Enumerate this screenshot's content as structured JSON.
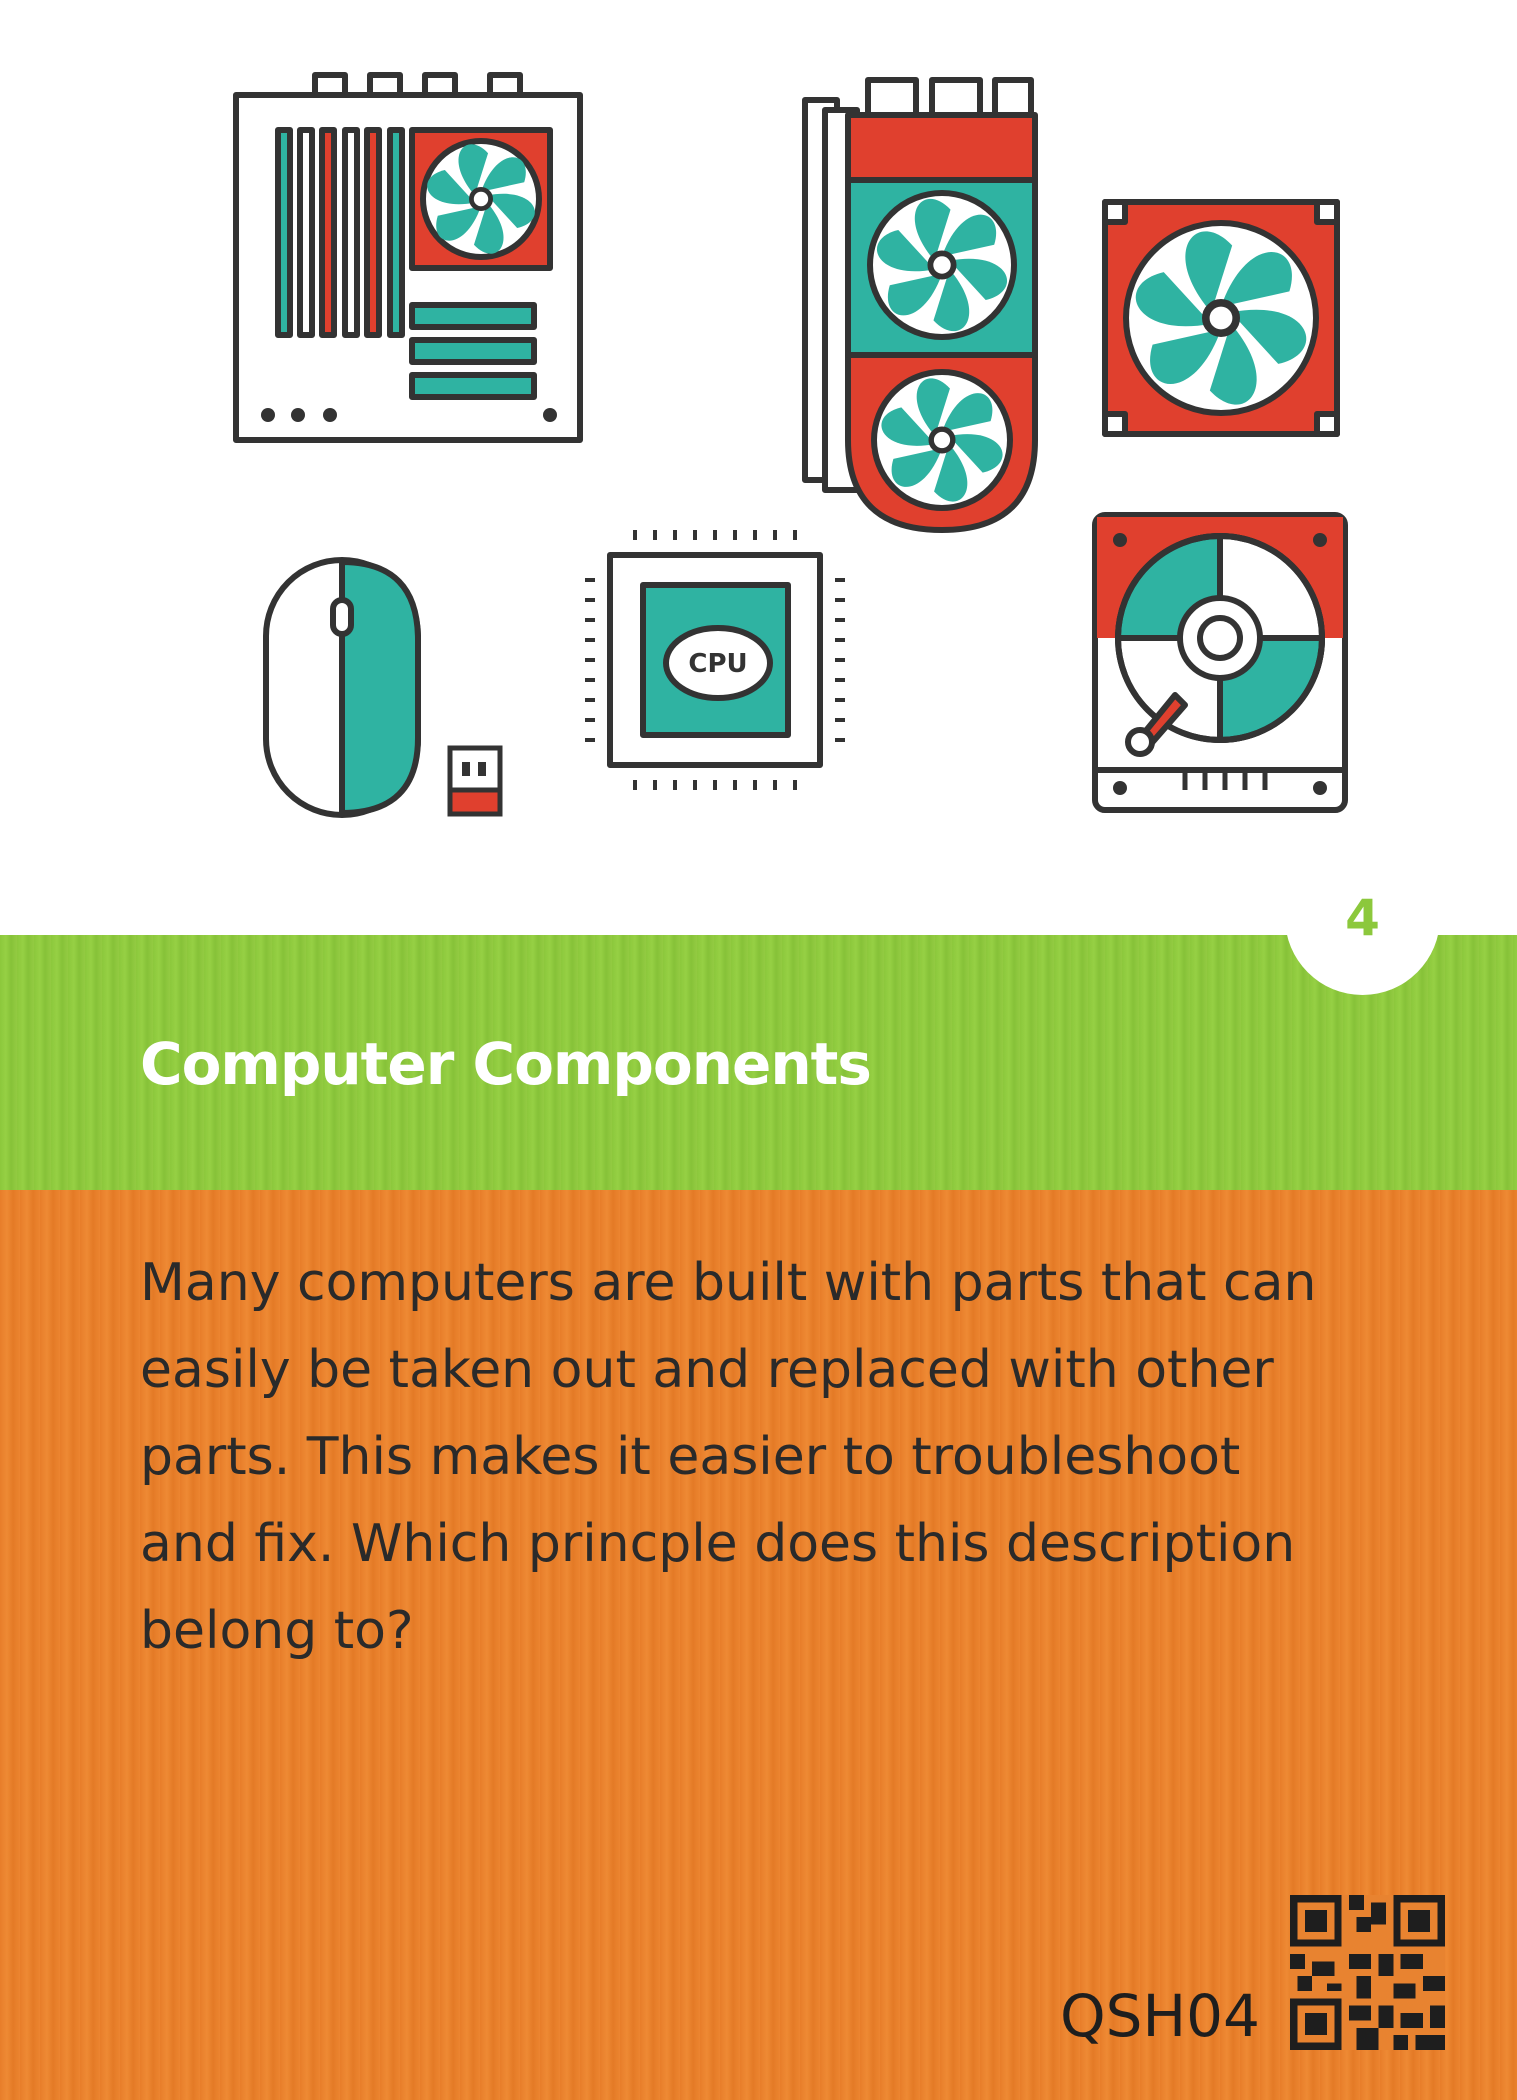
{
  "card": {
    "number": "4",
    "title": "Computer Components",
    "question": "Many computers are built with parts that can easily be taken out and replaced with other parts. This makes it easier to troubleshoot and fix. Which princple does this description belong to?",
    "code": "QSH04",
    "cpu_label": "CPU"
  },
  "colors": {
    "teal": "#2fb3a2",
    "red": "#e0402e",
    "outline": "#333333",
    "green_band": "#8cc83c",
    "orange_band": "#e87d2a"
  }
}
